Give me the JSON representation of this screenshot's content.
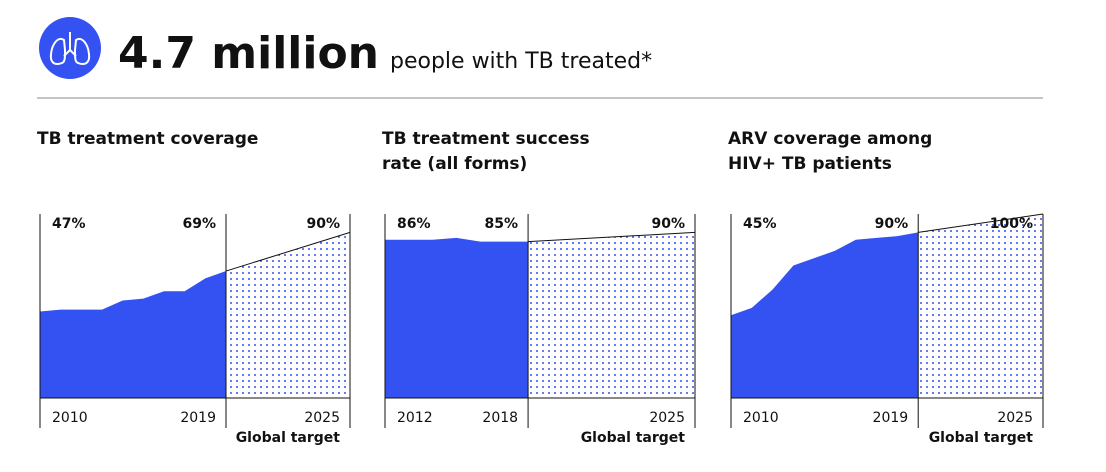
{
  "header": {
    "figure": "4.7 million",
    "text": "people with TB treated*"
  },
  "chart_data": [
    {
      "type": "area",
      "title": "TB treatment coverage",
      "color": "#3451f2",
      "x": [
        2010,
        2011,
        2012,
        2013,
        2014,
        2015,
        2016,
        2017,
        2018,
        2019
      ],
      "values": [
        47,
        48,
        48,
        48,
        53,
        54,
        58,
        58,
        65,
        69
      ],
      "value_labels": [
        "47%",
        null,
        null,
        null,
        null,
        null,
        null,
        null,
        null,
        "69%"
      ],
      "target": {
        "x": 2025,
        "value": 90,
        "value_label": "90%",
        "label": "Global target"
      },
      "xlim": [
        2010,
        2025
      ],
      "xticks": [
        2010,
        2019,
        2025
      ],
      "ylim": [
        0,
        100
      ]
    },
    {
      "type": "area",
      "title": "TB treatment success rate (all forms)",
      "color": "#3451f2",
      "x": [
        2012,
        2013,
        2014,
        2015,
        2016,
        2017,
        2018
      ],
      "values": [
        86,
        86,
        86,
        87,
        85,
        85,
        85
      ],
      "value_labels": [
        "86%",
        null,
        null,
        null,
        null,
        null,
        "85%"
      ],
      "target": {
        "x": 2025,
        "value": 90,
        "value_label": "90%",
        "label": "Global target"
      },
      "xlim": [
        2012,
        2025
      ],
      "xticks": [
        2012,
        2018,
        2025
      ],
      "ylim": [
        0,
        100
      ]
    },
    {
      "type": "area",
      "title": "ARV coverage among HIV+ TB patients",
      "color": "#3451f2",
      "x": [
        2010,
        2011,
        2012,
        2013,
        2014,
        2015,
        2016,
        2017,
        2018,
        2019
      ],
      "values": [
        45,
        49,
        59,
        72,
        76,
        80,
        86,
        87,
        88,
        90
      ],
      "value_labels": [
        "45%",
        null,
        null,
        null,
        null,
        null,
        null,
        null,
        null,
        "90%"
      ],
      "target": {
        "x": 2025,
        "value": 100,
        "value_label": "100%",
        "label": "Global target"
      },
      "xlim": [
        2010,
        2025
      ],
      "xticks": [
        2010,
        2019,
        2025
      ],
      "ylim": [
        0,
        100
      ]
    }
  ]
}
